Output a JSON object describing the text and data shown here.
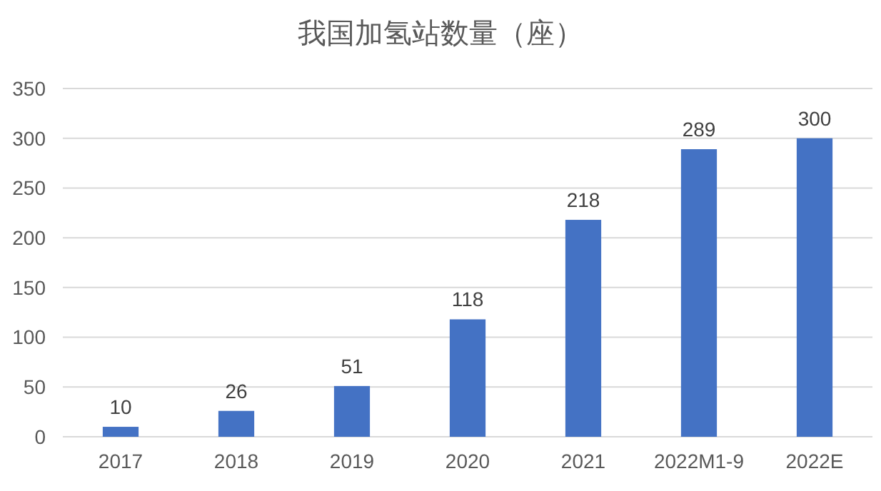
{
  "chart_data": {
    "type": "bar",
    "title": "我国加氢站数量（座）",
    "categories": [
      "2017",
      "2018",
      "2019",
      "2020",
      "2021",
      "2022M1-9",
      "2022E"
    ],
    "values": [
      10,
      26,
      51,
      118,
      218,
      289,
      300
    ],
    "color": "#4472c4",
    "ylim": [
      0,
      350
    ],
    "yticks": [
      0,
      50,
      100,
      150,
      200,
      250,
      300,
      350
    ],
    "grid": "y",
    "data_labels": true
  }
}
